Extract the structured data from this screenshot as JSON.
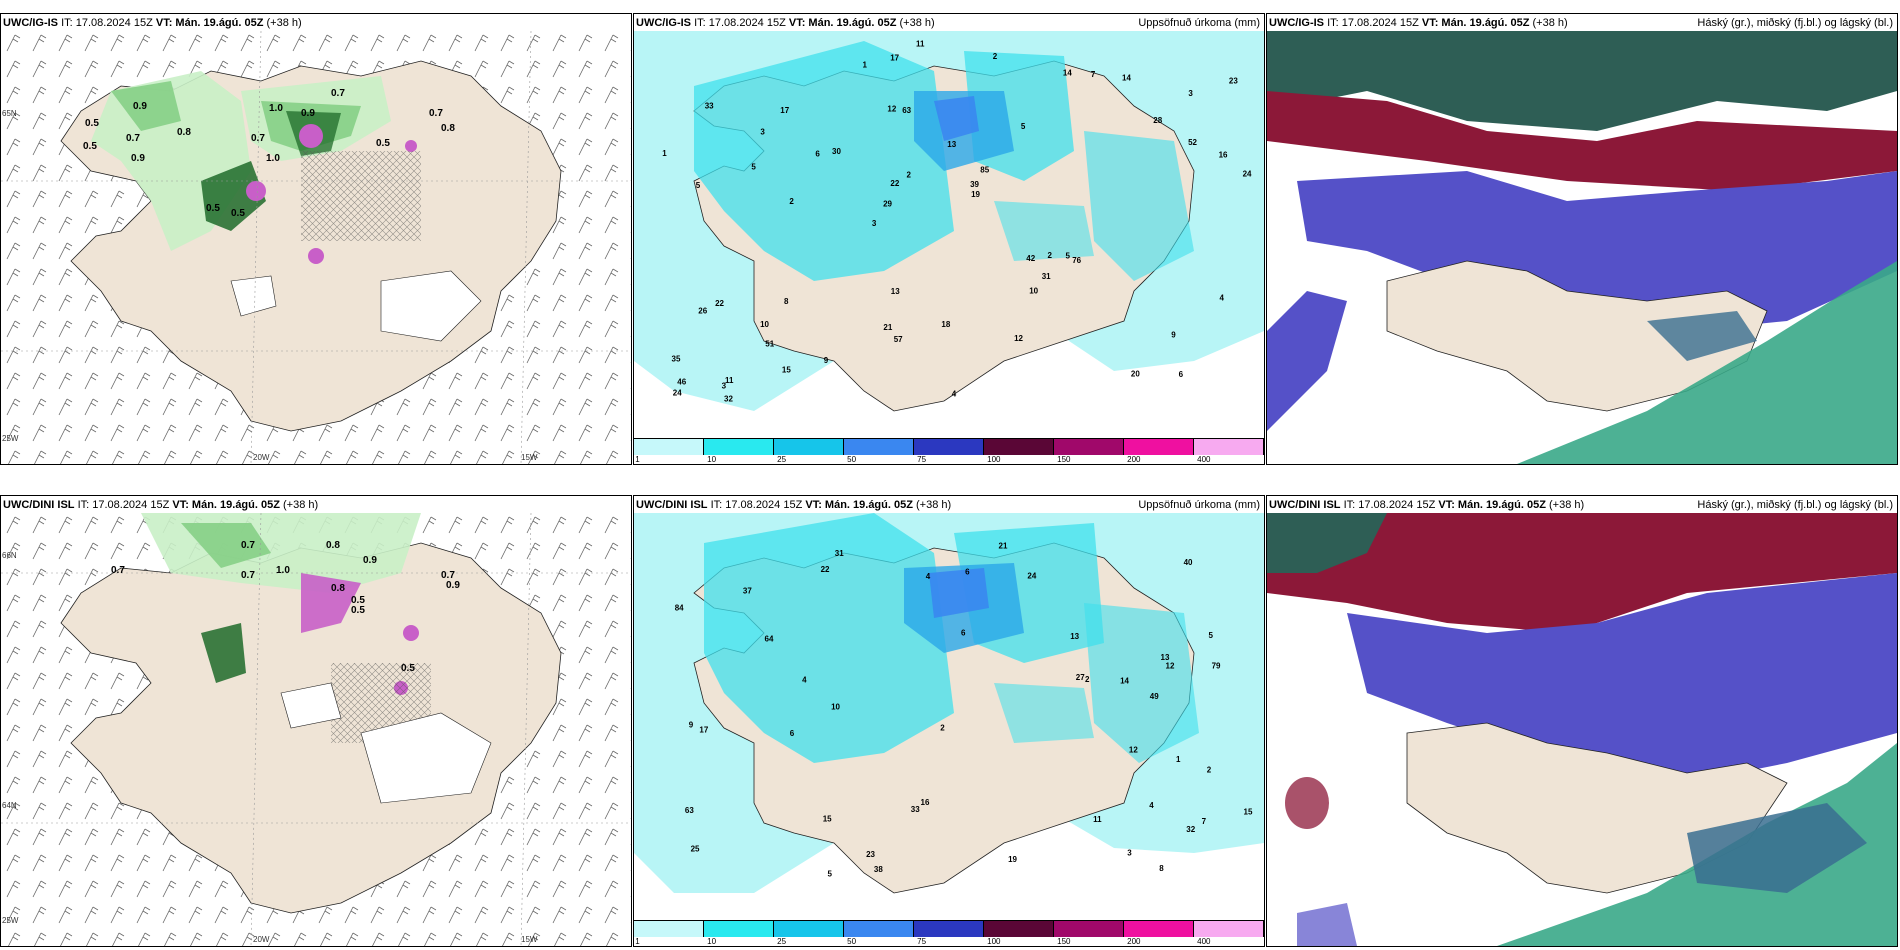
{
  "colors": {
    "land": "#efe4d6",
    "ocean": "#ffffff",
    "pale_green": "#c9efc7",
    "mid_green": "#86cf86",
    "dark_green": "#1f6b2a",
    "magenta": "#c85fc8",
    "precip_light": "#b8f5f6",
    "precip_cyan": "#40e0ec",
    "precip_blue": "#2aa8e8",
    "cloud_high": "#8c1838",
    "cloud_mid": "#5551c8",
    "cloud_low": "#3aa888"
  },
  "colorbar": {
    "labels": [
      "1",
      "10",
      "25",
      "50",
      "75",
      "100",
      "150",
      "200",
      "400"
    ],
    "colors": [
      "#c6f8fa",
      "#29e9ef",
      "#16c5ea",
      "#3a87f0",
      "#2b38c0",
      "#5a0636",
      "#a0086a",
      "#ef10a0",
      "#f7aaf0"
    ]
  },
  "rows": [
    {
      "panels": [
        {
          "model": "UWC/IG-IS",
          "it": "IT: 17.08.2024 15Z",
          "vt": "VT: Mán. 19.ágú. 05Z",
          "lead": "(+38 h)",
          "right": ""
        },
        {
          "model": "UWC/IG-IS",
          "it": "IT: 17.08.2024 15Z",
          "vt": "VT: Mán. 19.ágú. 05Z",
          "lead": "(+38 h)",
          "right": "Uppsöfnuð úrkoma (mm)"
        },
        {
          "model": "UWC/IG-IS",
          "it": "IT: 17.08.2024 15Z",
          "vt": "VT: Mán. 19.ágú. 05Z",
          "lead": "(+38 h)",
          "right": "Háský (gr.), miðský (fj.bl.) og lágský (bl.)"
        }
      ]
    },
    {
      "panels": [
        {
          "model": "UWC/DINI ISL",
          "it": "IT: 17.08.2024 15Z",
          "vt": "VT: Mán. 19.ágú. 05Z",
          "lead": "(+38 h)",
          "right": ""
        },
        {
          "model": "UWC/DINI ISL",
          "it": "IT: 17.08.2024 15Z",
          "vt": "VT: Mán. 19.ágú. 05Z",
          "lead": "(+38 h)",
          "right": "Uppsöfnuð úrkoma (mm)"
        },
        {
          "model": "UWC/DINI ISL",
          "it": "IT: 17.08.2024 15Z",
          "vt": "VT: Mán. 19.ágú. 05Z",
          "lead": "(+38 h)",
          "right": "Háský (gr.), miðský (fj.bl.) og lágský (bl.)"
        }
      ]
    }
  ],
  "axis_labels": {
    "lat65": "65N",
    "lat64": "64N",
    "lon20": "20W",
    "lon15": "15W",
    "lon25": "25W",
    "lat66": "66N"
  },
  "wind_panel_values_top": [
    "0.5",
    "0.9",
    "0.7",
    "0.9",
    "0.8",
    "0.7",
    "0.5",
    "0.5",
    "0.5",
    "1.0",
    "0.7",
    "0.7",
    "0.8",
    "0.5",
    "0.9",
    "1.0"
  ],
  "wind_panel_values_bottom": [
    "0.7",
    "0.7",
    "0.8",
    "0.9",
    "1.0",
    "0.7",
    "0.9",
    "0.5",
    "0.5",
    "0.7",
    "0.8",
    "0.5"
  ],
  "precip_values_top": [
    "6",
    "5",
    "3",
    "3",
    "5",
    "11",
    "12",
    "13",
    "22",
    "30",
    "35",
    "51",
    "63",
    "85",
    "76",
    "33",
    "17",
    "24",
    "42",
    "52",
    "29",
    "21",
    "22",
    "17",
    "14",
    "8",
    "20",
    "9",
    "5",
    "4",
    "6",
    "5",
    "10",
    "15",
    "16",
    "39",
    "46",
    "57",
    "19",
    "26",
    "28",
    "23",
    "31",
    "12",
    "10",
    "32",
    "24",
    "18",
    "14",
    "11",
    "2",
    "1",
    "3",
    "7",
    "3",
    "2",
    "1",
    "2",
    "4",
    "13",
    "9",
    "2"
  ],
  "precip_values_bottom": [
    "4",
    "5",
    "7",
    "6",
    "25",
    "31",
    "13",
    "15",
    "40",
    "64",
    "79",
    "84",
    "49",
    "38",
    "63",
    "37",
    "32",
    "22",
    "16",
    "12",
    "9",
    "17",
    "19",
    "27",
    "23",
    "33",
    "21",
    "24",
    "13",
    "15",
    "6",
    "11",
    "5",
    "2",
    "1",
    "3",
    "2",
    "4",
    "8",
    "10",
    "12",
    "14",
    "6",
    "4",
    "2"
  ]
}
